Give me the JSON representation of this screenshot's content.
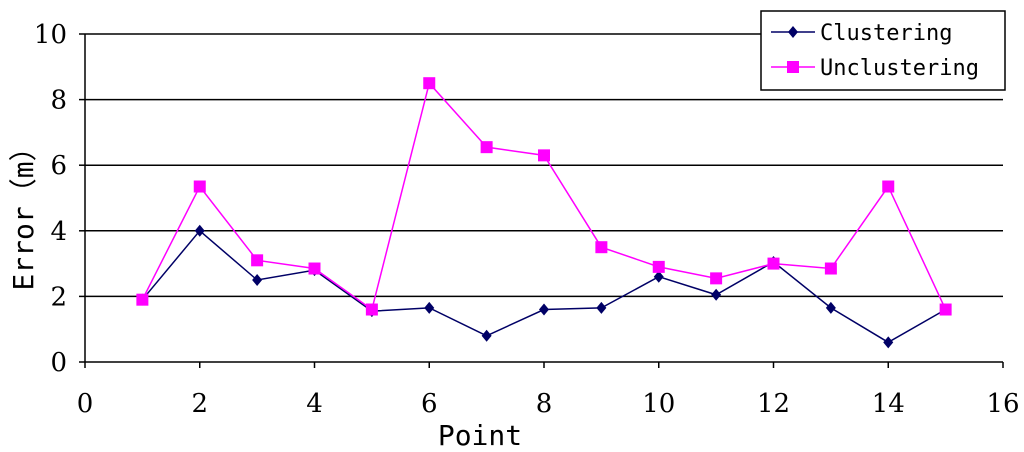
{
  "chart_data": {
    "type": "line",
    "title": "",
    "xlabel": "Point",
    "ylabel": "Error（m）",
    "xlim": [
      0,
      16
    ],
    "ylim": [
      0,
      10
    ],
    "xticks": [
      "0",
      "2",
      "4",
      "6",
      "8",
      "10",
      "12",
      "14",
      "16"
    ],
    "yticks": [
      "0",
      "2",
      "4",
      "6",
      "8",
      "10"
    ],
    "grid": "horizontal",
    "legend_position": "top-right",
    "x": [
      1,
      2,
      3,
      4,
      5,
      6,
      7,
      8,
      9,
      10,
      11,
      12,
      13,
      14,
      15
    ],
    "series": [
      {
        "name": "Clustering",
        "color": "#000066",
        "marker": "diamond",
        "values": [
          1.9,
          4.0,
          2.5,
          2.8,
          1.55,
          1.65,
          0.8,
          1.6,
          1.65,
          2.6,
          2.05,
          3.05,
          1.65,
          0.6,
          1.6
        ]
      },
      {
        "name": "Unclustering",
        "color": "#ff00ff",
        "marker": "square",
        "values": [
          1.9,
          5.35,
          3.1,
          2.85,
          1.6,
          8.5,
          6.55,
          6.3,
          3.5,
          2.9,
          2.55,
          3.0,
          2.85,
          5.35,
          1.6
        ]
      }
    ]
  }
}
